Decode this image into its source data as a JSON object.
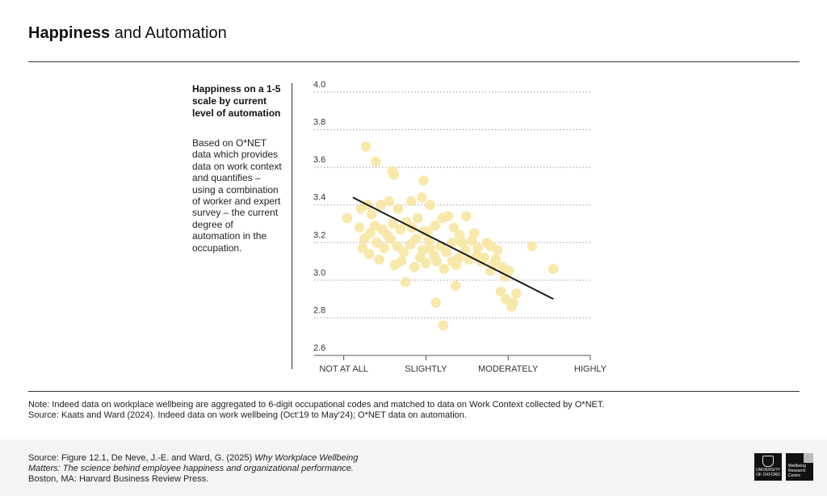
{
  "header": {
    "title_bold": "Happiness",
    "title_rest": " and Automation"
  },
  "sidebar": {
    "title": "Happiness on a 1-5 scale by current level of automation",
    "description": "Based on O*NET data which provides data on work context and quantifies – using a combination of worker and expert survey – the current degree of automation in the occupation."
  },
  "note": {
    "line1": "Note: Indeed data on workplace wellbeing are aggregated to 6-digit occupational codes and matched to data on Work Context collected by O*NET.",
    "line2": "Source: Kaats and Ward (2024). Indeed data on work wellbeing (Oct‘19 to May‘24); O*NET data on automation."
  },
  "footer": {
    "prefix": "Source: Figure 12.1, De Neve, J.-E. and Ward, G. (2025) ",
    "italic": "Why Workplace Wellbeing Matters: The science behind employee happiness and organizational performance.",
    "suffix": " Boston, MA: Harvard Business Review Press.",
    "logo_oxford": "UNIVERSITY OF OXFORD",
    "logo_wrc": "Wellbeing Research Centre"
  },
  "colors": {
    "point": "#f7e7a4",
    "line": "#1a1a1a",
    "grid": "#9a9a9a"
  },
  "chart_data": {
    "type": "scatter",
    "title": "",
    "xlabel": "",
    "ylabel": "",
    "x_ticks": [
      {
        "value": 1,
        "label": "NOT AT ALL"
      },
      {
        "value": 2,
        "label": "SLIGHTLY"
      },
      {
        "value": 3,
        "label": "MODERATELY"
      },
      {
        "value": 4,
        "label": "HIGHLY"
      }
    ],
    "xlim": [
      0.64,
      4.0
    ],
    "ylim": [
      2.6,
      4.0
    ],
    "y_ticks": [
      2.6,
      2.8,
      3.0,
      3.2,
      3.4,
      3.6,
      3.8,
      4.0
    ],
    "grid": "horizontal dotted",
    "trendline": {
      "x": [
        1.11,
        3.55
      ],
      "y": [
        3.44,
        2.9
      ]
    },
    "points": [
      [
        1.27,
        3.71
      ],
      [
        1.39,
        3.63
      ],
      [
        1.59,
        3.58
      ],
      [
        1.61,
        3.56
      ],
      [
        1.97,
        3.53
      ],
      [
        1.04,
        3.33
      ],
      [
        1.21,
        3.38
      ],
      [
        1.29,
        3.4
      ],
      [
        1.34,
        3.35
      ],
      [
        1.45,
        3.4
      ],
      [
        1.55,
        3.42
      ],
      [
        1.66,
        3.38
      ],
      [
        1.82,
        3.42
      ],
      [
        1.95,
        3.44
      ],
      [
        2.05,
        3.4
      ],
      [
        1.19,
        3.28
      ],
      [
        1.25,
        3.22
      ],
      [
        1.32,
        3.25
      ],
      [
        1.38,
        3.29
      ],
      [
        1.47,
        3.27
      ],
      [
        1.53,
        3.24
      ],
      [
        1.6,
        3.3
      ],
      [
        1.69,
        3.27
      ],
      [
        1.76,
        3.31
      ],
      [
        1.83,
        3.28
      ],
      [
        1.9,
        3.33
      ],
      [
        2.02,
        3.26
      ],
      [
        2.11,
        3.29
      ],
      [
        2.2,
        3.33
      ],
      [
        2.27,
        3.34
      ],
      [
        2.34,
        3.28
      ],
      [
        2.41,
        3.24
      ],
      [
        1.23,
        3.17
      ],
      [
        1.31,
        3.14
      ],
      [
        1.4,
        3.2
      ],
      [
        1.49,
        3.17
      ],
      [
        1.57,
        3.22
      ],
      [
        1.65,
        3.18
      ],
      [
        1.73,
        3.15
      ],
      [
        1.81,
        3.19
      ],
      [
        1.88,
        3.22
      ],
      [
        1.96,
        3.16
      ],
      [
        2.03,
        3.21
      ],
      [
        2.1,
        3.13
      ],
      [
        2.18,
        3.18
      ],
      [
        2.25,
        3.15
      ],
      [
        2.32,
        3.2
      ],
      [
        2.4,
        3.12
      ],
      [
        2.48,
        3.16
      ],
      [
        2.56,
        3.21
      ],
      [
        2.63,
        3.17
      ],
      [
        2.71,
        3.12
      ],
      [
        2.79,
        3.18
      ],
      [
        2.85,
        3.11
      ],
      [
        1.43,
        3.11
      ],
      [
        1.62,
        3.08
      ],
      [
        1.7,
        3.1
      ],
      [
        1.86,
        3.07
      ],
      [
        2.0,
        3.09
      ],
      [
        2.13,
        3.1
      ],
      [
        2.22,
        3.06
      ],
      [
        2.37,
        3.08
      ],
      [
        2.52,
        3.11
      ],
      [
        2.67,
        3.1
      ],
      [
        2.81,
        3.08
      ],
      [
        2.93,
        3.07
      ],
      [
        3.01,
        3.05
      ],
      [
        1.75,
        2.99
      ],
      [
        2.36,
        2.97
      ],
      [
        2.91,
        2.94
      ],
      [
        2.97,
        2.9
      ],
      [
        3.04,
        2.86
      ],
      [
        2.12,
        2.88
      ],
      [
        2.21,
        2.76
      ],
      [
        2.78,
        3.05
      ],
      [
        2.96,
        3.02
      ],
      [
        3.06,
        2.88
      ],
      [
        3.1,
        2.93
      ],
      [
        2.49,
        3.34
      ],
      [
        3.29,
        3.18
      ],
      [
        3.55,
        3.06
      ],
      [
        2.87,
        3.16
      ],
      [
        2.59,
        3.25
      ],
      [
        2.44,
        3.2
      ],
      [
        2.05,
        3.17
      ],
      [
        1.93,
        3.12
      ],
      [
        1.98,
        3.26
      ],
      [
        2.62,
        3.13
      ],
      [
        2.74,
        3.2
      ],
      [
        2.32,
        3.1
      ]
    ]
  }
}
